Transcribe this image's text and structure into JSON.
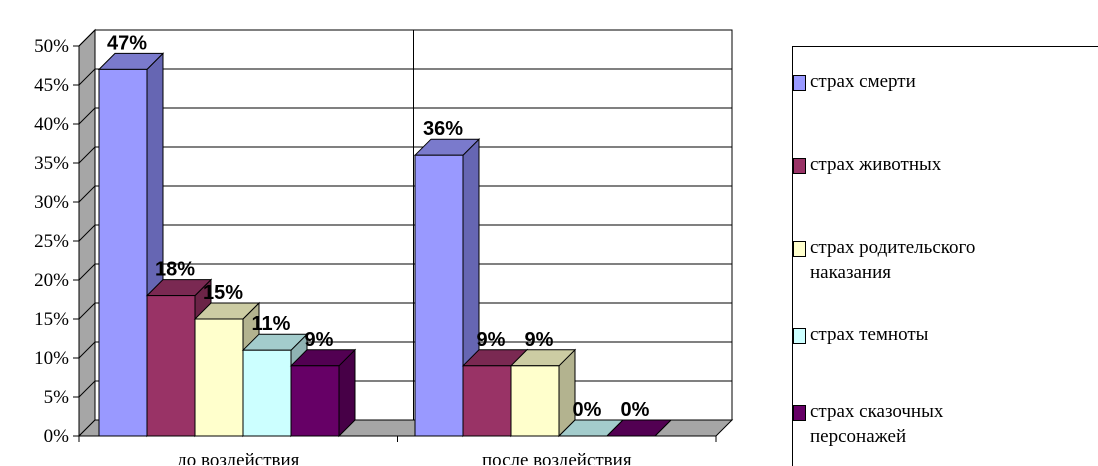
{
  "chart_data": {
    "type": "bar",
    "categories": [
      "до воздействия",
      "после воздействия"
    ],
    "series": [
      {
        "name": "страх смерти",
        "values": [
          47,
          36
        ],
        "labels": [
          "47%",
          "36%"
        ],
        "color": "#9999ff",
        "side": "#6666b3",
        "top": "#7a7acc"
      },
      {
        "name": "страх животных",
        "values": [
          18,
          9
        ],
        "labels": [
          "18%",
          "9%"
        ],
        "color": "#993366",
        "side": "#6b2447",
        "top": "#7a2952"
      },
      {
        "name": "страх родительского наказания",
        "values": [
          15,
          9
        ],
        "labels": [
          "15%",
          "9%"
        ],
        "color": "#ffffcc",
        "side": "#b3b38f",
        "top": "#ccccA3"
      },
      {
        "name": "страх темноты",
        "values": [
          11,
          0
        ],
        "labels": [
          "11%",
          "0%"
        ],
        "color": "#ccffff",
        "side": "#8fb3b3",
        "top": "#a3cccc"
      },
      {
        "name": "страх сказочных персонажей",
        "values": [
          9,
          0
        ],
        "labels": [
          "9%",
          "0%"
        ],
        "color": "#660066",
        "side": "#470047",
        "top": "#520052"
      }
    ],
    "y_ticks": [
      "0%",
      "5%",
      "10%",
      "15%",
      "20%",
      "25%",
      "30%",
      "35%",
      "40%",
      "45%",
      "50%"
    ],
    "ylim": [
      0,
      50
    ],
    "grid": true,
    "legend_position": "right"
  }
}
